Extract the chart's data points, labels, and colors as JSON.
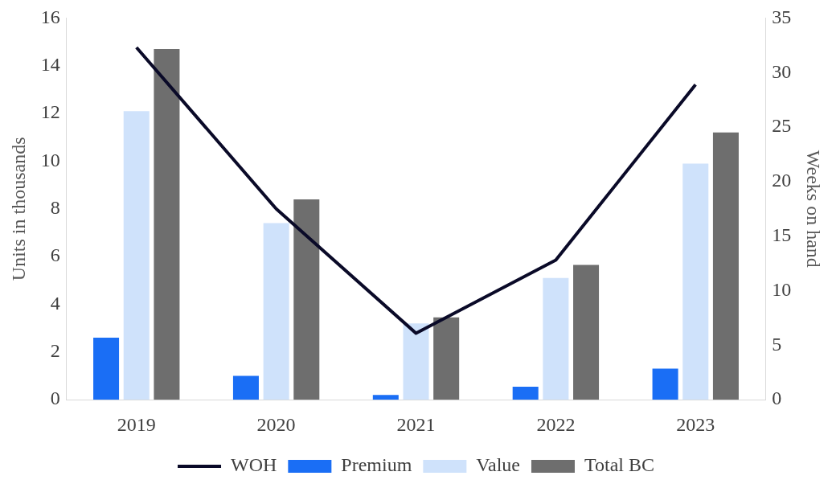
{
  "chart_data": {
    "type": "bar",
    "ylabel": "Units in thousands",
    "y2label": "Weeks on hand",
    "categories": [
      "2019",
      "2020",
      "2021",
      "2022",
      "2023"
    ],
    "series": [
      {
        "name": "Premium",
        "color": "#1a6ef5",
        "values": [
          2.6,
          1.0,
          0.2,
          0.55,
          1.3
        ]
      },
      {
        "name": "Value",
        "color": "#cfe2fb",
        "values": [
          12.1,
          7.4,
          3.2,
          5.1,
          9.9
        ]
      },
      {
        "name": "Total BC",
        "color": "#6e6e6e",
        "values": [
          14.7,
          8.4,
          3.45,
          5.65,
          11.2
        ]
      },
      {
        "name": "WOH",
        "color": "#0a0a28",
        "type": "line",
        "axis": "y2",
        "values": [
          32.3,
          17.5,
          6.1,
          12.8,
          28.9
        ]
      }
    ],
    "ylim": [
      0,
      16
    ],
    "yticks": [
      0,
      2,
      4,
      6,
      8,
      10,
      12,
      14,
      16
    ],
    "y2lim": [
      0,
      35
    ],
    "y2ticks": [
      0,
      5,
      10,
      15,
      20,
      25,
      30,
      35
    ],
    "legend": "bottom",
    "marker": "none",
    "line_style": "solid"
  }
}
